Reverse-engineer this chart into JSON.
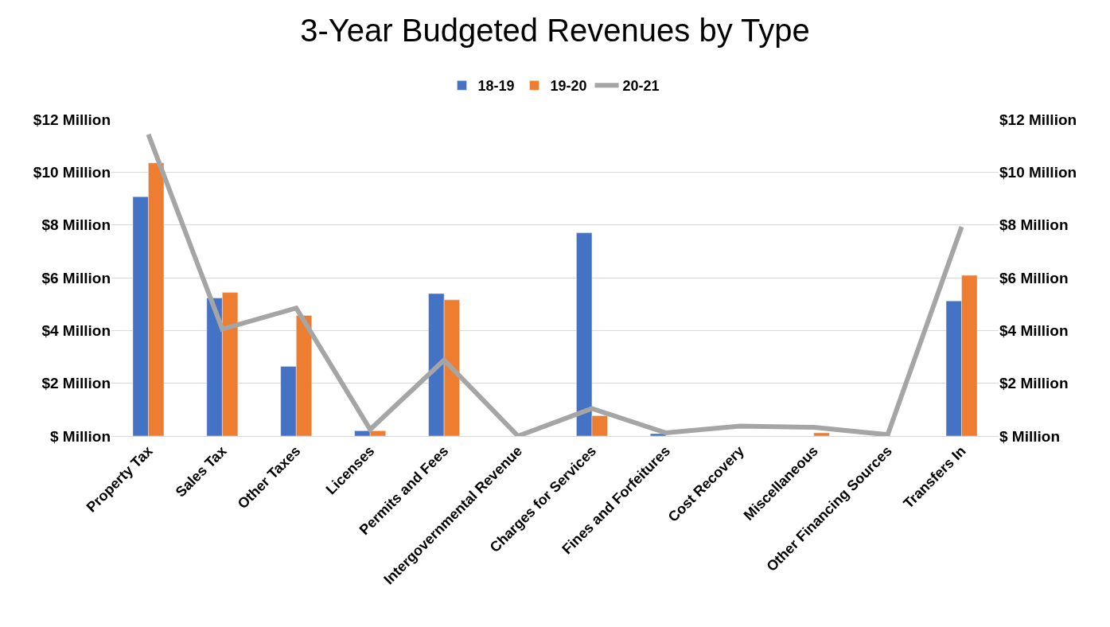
{
  "chart_data": {
    "type": "bar",
    "title": "3-Year Budgeted Revenues by Type",
    "categories": [
      "Property Tax",
      "Sales Tax",
      "Other Taxes",
      "Licenses",
      "Permits and Fees",
      "Intergovernmental Revenue",
      "Charges for Services",
      "Fines and Forfeitures",
      "Cost Recovery",
      "Miscellaneous",
      "Other Financing Sources",
      "Transfers In"
    ],
    "series": [
      {
        "name": "18-19",
        "color": "#4472c4",
        "values": [
          9.07,
          5.23,
          2.64,
          0.2,
          5.4,
          null,
          7.7,
          0.09,
          null,
          null,
          null,
          5.12
        ]
      },
      {
        "name": "19-20",
        "color": "#ed7d31",
        "values": [
          10.35,
          5.44,
          4.57,
          0.2,
          5.16,
          null,
          0.77,
          null,
          null,
          0.12,
          null,
          6.09
        ]
      },
      {
        "name": "20-21",
        "color": "#a5a5a5",
        "type": "line",
        "axis": "y2",
        "values": [
          11.43,
          4.05,
          4.85,
          0.25,
          2.88,
          0,
          1.04,
          0.12,
          0.38,
          0.33,
          0.05,
          7.93
        ]
      }
    ],
    "ylim": [
      0,
      12
    ],
    "yticks": [
      {
        "value": 0,
        "label": "$ Million"
      },
      {
        "value": 2,
        "label": "$2 Million"
      },
      {
        "value": 4,
        "label": "$4 Million"
      },
      {
        "value": 6,
        "label": "$6 Million"
      },
      {
        "value": 8,
        "label": "$8 Million"
      },
      {
        "value": 10,
        "label": "$10 Million"
      },
      {
        "value": 12,
        "label": "$12 Million"
      }
    ],
    "y2lim": [
      0,
      12
    ],
    "y2ticks": [
      {
        "value": 0,
        "label": "$ Million"
      },
      {
        "value": 2,
        "label": "$2 Million"
      },
      {
        "value": 4,
        "label": "$4 Million"
      },
      {
        "value": 6,
        "label": "$6 Million"
      },
      {
        "value": 8,
        "label": "$8 Million"
      },
      {
        "value": 10,
        "label": "$10 Million"
      },
      {
        "value": 12,
        "label": "$12 Million"
      }
    ],
    "grid": "y",
    "legend": "top",
    "line_style": "solid",
    "marker": "none"
  }
}
